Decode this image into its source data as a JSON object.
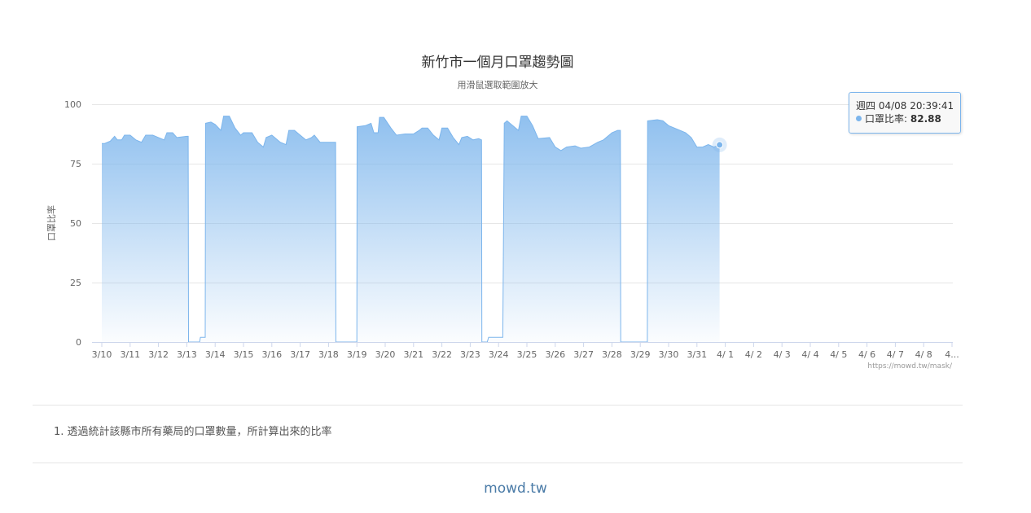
{
  "chart_data": {
    "type": "area",
    "title": "新竹市一個月口罩趨勢圖",
    "subtitle": "用滑鼠選取範圍放大",
    "ylabel": "口罩比率",
    "xlabel": "",
    "ylim": [
      0,
      100
    ],
    "yticks": [
      "0",
      "25",
      "50",
      "75",
      "100"
    ],
    "x_start": "3/10",
    "x_end": "4/8",
    "categories": [
      "3/10",
      "3/11",
      "3/12",
      "3/13",
      "3/14",
      "3/15",
      "3/16",
      "3/17",
      "3/18",
      "3/19",
      "3/20",
      "3/21",
      "3/22",
      "3/23",
      "3/24",
      "3/25",
      "3/26",
      "3/27",
      "3/28",
      "3/29",
      "3/30",
      "3/31",
      "4/ 1",
      "4/ 2",
      "4/ 3",
      "4/ 4",
      "4/ 5",
      "4/ 6",
      "4/ 7",
      "4/ 8",
      "4..."
    ],
    "grid": true,
    "legend": false,
    "color": "#7cb5ec",
    "credits": "https://mowd.tw/mask/",
    "series": [
      {
        "points": [
          [
            0.0,
            83.5
          ],
          [
            0.1,
            83.5
          ],
          [
            0.3,
            84.5
          ],
          [
            0.45,
            86.5
          ],
          [
            0.55,
            85
          ],
          [
            0.7,
            85
          ],
          [
            0.8,
            87
          ],
          [
            1.0,
            87
          ],
          [
            1.2,
            85
          ],
          [
            1.4,
            84
          ],
          [
            1.55,
            87
          ],
          [
            1.8,
            87
          ],
          [
            2.0,
            86
          ],
          [
            2.2,
            85
          ],
          [
            2.3,
            88
          ],
          [
            2.5,
            88
          ],
          [
            2.65,
            86
          ],
          [
            3.0,
            86.5
          ],
          [
            3.05,
            86.5
          ],
          [
            3.06,
            0
          ],
          [
            3.45,
            0
          ],
          [
            3.48,
            2
          ],
          [
            3.65,
            2
          ],
          [
            3.66,
            92
          ],
          [
            3.85,
            92.5
          ],
          [
            4.0,
            91.5
          ],
          [
            4.2,
            89
          ],
          [
            4.3,
            95
          ],
          [
            4.5,
            95
          ],
          [
            4.7,
            90
          ],
          [
            4.9,
            87
          ],
          [
            5.0,
            88
          ],
          [
            5.3,
            88
          ],
          [
            5.5,
            84
          ],
          [
            5.7,
            82
          ],
          [
            5.8,
            86
          ],
          [
            6.0,
            87
          ],
          [
            6.3,
            84
          ],
          [
            6.5,
            83
          ],
          [
            6.6,
            89
          ],
          [
            6.8,
            89
          ],
          [
            7.0,
            87
          ],
          [
            7.2,
            85
          ],
          [
            7.4,
            86
          ],
          [
            7.5,
            87
          ],
          [
            7.7,
            84
          ],
          [
            8.25,
            84
          ],
          [
            8.26,
            0
          ],
          [
            9.0,
            0
          ],
          [
            9.01,
            90.5
          ],
          [
            9.3,
            91
          ],
          [
            9.5,
            92
          ],
          [
            9.6,
            88
          ],
          [
            9.75,
            88
          ],
          [
            9.8,
            94.5
          ],
          [
            9.95,
            94.5
          ],
          [
            10.2,
            90
          ],
          [
            10.4,
            87
          ],
          [
            10.7,
            87.5
          ],
          [
            11.0,
            87.5
          ],
          [
            11.2,
            89
          ],
          [
            11.3,
            90
          ],
          [
            11.5,
            90
          ],
          [
            11.7,
            87
          ],
          [
            11.9,
            85
          ],
          [
            12.0,
            90
          ],
          [
            12.2,
            90
          ],
          [
            12.4,
            86
          ],
          [
            12.6,
            83
          ],
          [
            12.7,
            86
          ],
          [
            12.9,
            86.5
          ],
          [
            13.1,
            85
          ],
          [
            13.3,
            85.5
          ],
          [
            13.4,
            85
          ],
          [
            13.41,
            0
          ],
          [
            13.6,
            0
          ],
          [
            13.65,
            2
          ],
          [
            14.15,
            2
          ],
          [
            14.2,
            92
          ],
          [
            14.3,
            93
          ],
          [
            14.5,
            91
          ],
          [
            14.7,
            89
          ],
          [
            14.8,
            95
          ],
          [
            15.0,
            95
          ],
          [
            15.2,
            91
          ],
          [
            15.4,
            85.5
          ],
          [
            15.8,
            86
          ],
          [
            16.0,
            82
          ],
          [
            16.2,
            80.5
          ],
          [
            16.4,
            82
          ],
          [
            16.7,
            82.5
          ],
          [
            16.9,
            81.5
          ],
          [
            17.2,
            82
          ],
          [
            17.5,
            84
          ],
          [
            17.7,
            85
          ],
          [
            17.9,
            87
          ],
          [
            18.0,
            88
          ],
          [
            18.2,
            89
          ],
          [
            18.3,
            89
          ],
          [
            18.31,
            0
          ],
          [
            19.25,
            0
          ],
          [
            19.26,
            93
          ],
          [
            19.6,
            93.5
          ],
          [
            19.8,
            93
          ],
          [
            20.0,
            91
          ],
          [
            20.2,
            90
          ],
          [
            20.4,
            89
          ],
          [
            20.6,
            88
          ],
          [
            20.8,
            86
          ],
          [
            21.0,
            82
          ],
          [
            21.2,
            82
          ],
          [
            21.4,
            83
          ],
          [
            21.6,
            82
          ],
          [
            21.8,
            82.9
          ]
        ]
      }
    ]
  },
  "tooltip": {
    "header": "週四 04/08 20:39:41",
    "series_label": "口罩比率",
    "value": "82.88"
  },
  "notes": [
    "1. 透過統計該縣市所有藥局的口罩數量，所計算出來的比率"
  ],
  "footer": {
    "site_link": "mowd.tw"
  }
}
